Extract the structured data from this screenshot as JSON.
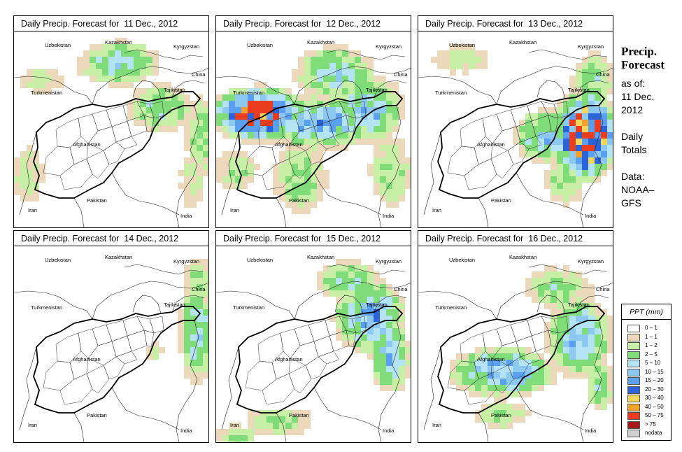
{
  "panels": [
    {
      "title": "Daily Precip. Forecast for  11 Dec., 2012",
      "scenario": "northeast-light"
    },
    {
      "title": "Daily Precip. Forecast for  12 Dec., 2012",
      "scenario": "widespread-west-heavy"
    },
    {
      "title": "Daily Precip. Forecast for  13 Dec., 2012",
      "scenario": "east-heavy"
    },
    {
      "title": "Daily Precip. Forecast for  14 Dec., 2012",
      "scenario": "far-east-light"
    },
    {
      "title": "Daily Precip. Forecast for  15 Dec., 2012",
      "scenario": "east-moderate"
    },
    {
      "title": "Daily Precip. Forecast for  16 Dec., 2012",
      "scenario": "central-east-moderate"
    }
  ],
  "map_labels": {
    "kazakhstan": "Kazakhstan",
    "uzbekistan": "Uzbekistan",
    "kyrgyzstan": "Kyrgyzstan",
    "china": "China",
    "tajikistan": "Tajikistan",
    "turkmenistan": "Turkmenistan",
    "afghanistan": "Afghanistan",
    "pakistan": "Pakistan",
    "iran": "Iran",
    "india": "India"
  },
  "sidebar": {
    "title_line1": "Precip.",
    "title_line2": "Forecast",
    "asof_line1": "as of:",
    "asof_line2": "11 Dec.",
    "asof_line3": "2012",
    "totals_line1": "Daily",
    "totals_line2": "Totals",
    "data_line1": "Data:",
    "data_line2": "NOAA–",
    "data_line3": "GFS"
  },
  "legend": {
    "title": "PPT (mm)",
    "classes": [
      {
        "label": "0 – 1",
        "color": "#ffffff"
      },
      {
        "label": "1 – 1",
        "color": "#ecd9bb"
      },
      {
        "label": "1 – 2",
        "color": "#c8efa6"
      },
      {
        "label": "2 – 5",
        "color": "#7fdc78"
      },
      {
        "label": "5 – 10",
        "color": "#b4e3f4"
      },
      {
        "label": "10 – 15",
        "color": "#8cc8f0"
      },
      {
        "label": "15 – 20",
        "color": "#5b9ff0"
      },
      {
        "label": "20 – 30",
        "color": "#2c63d6"
      },
      {
        "label": "30 – 40",
        "color": "#f3d65e"
      },
      {
        "label": "40 – 50",
        "color": "#f2a22a"
      },
      {
        "label": "50 – 75",
        "color": "#ea3c1e"
      },
      {
        "label": "> 75",
        "color": "#a71a1a"
      },
      {
        "label": "nodata",
        "color": "#cfcfcf"
      }
    ]
  }
}
